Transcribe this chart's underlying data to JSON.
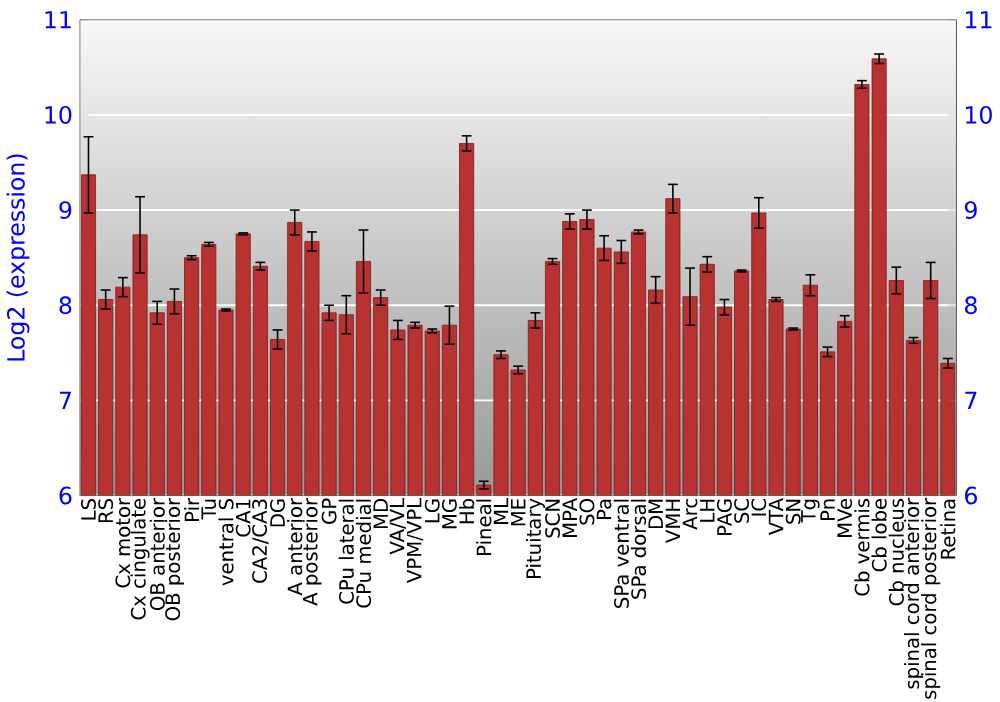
{
  "chart_data": {
    "type": "bar",
    "ylabel": "Log2 (expression)",
    "categories": [
      "LS",
      "RS",
      "Cx motor",
      "Cx cingulate",
      "OB anterior",
      "OB posterior",
      "Pir",
      "Tu",
      "ventral S",
      "CA1",
      "CA2/CA3",
      "DG",
      "A anterior",
      "A posterior",
      "GP",
      "CPu lateral",
      "CPu medial",
      "MD",
      "VA/VL",
      "VPM/VPL",
      "LG",
      "MG",
      "Hb",
      "Pineal",
      "ML",
      "ME",
      "Pituitary",
      "SCN",
      "MPA",
      "SO",
      "Pa",
      "SPa ventral",
      "SPa dorsal",
      "DM",
      "VMH",
      "Arc",
      "LH",
      "PAG",
      "SC",
      "IC",
      "VTA",
      "SN",
      "Tg",
      "Pn",
      "MVe",
      "Cb vermis",
      "Cb lobe",
      "Cb nucleus",
      "spinal cord anterior",
      "spinal cord posterior",
      "Retina"
    ],
    "values": [
      9.37,
      8.06,
      8.19,
      8.74,
      7.92,
      8.04,
      8.5,
      8.64,
      7.95,
      8.75,
      8.41,
      7.64,
      8.87,
      8.67,
      7.92,
      7.9,
      8.46,
      8.08,
      7.74,
      7.79,
      7.73,
      7.79,
      9.7,
      6.11,
      7.48,
      7.32,
      7.84,
      8.46,
      8.88,
      8.9,
      8.6,
      8.56,
      8.77,
      8.16,
      9.12,
      8.09,
      8.43,
      7.98,
      8.36,
      8.97,
      8.06,
      7.75,
      8.21,
      7.51,
      7.83,
      10.32,
      10.59,
      8.26,
      7.63,
      8.26,
      7.39
    ],
    "errors": [
      0.4,
      0.1,
      0.1,
      0.4,
      0.12,
      0.13,
      0.02,
      0.02,
      0.01,
      0.01,
      0.04,
      0.1,
      0.13,
      0.1,
      0.08,
      0.2,
      0.33,
      0.08,
      0.1,
      0.03,
      0.02,
      0.2,
      0.08,
      0.04,
      0.04,
      0.04,
      0.08,
      0.03,
      0.08,
      0.1,
      0.13,
      0.12,
      0.02,
      0.14,
      0.15,
      0.3,
      0.08,
      0.08,
      0.01,
      0.16,
      0.02,
      0.01,
      0.11,
      0.05,
      0.06,
      0.04,
      0.05,
      0.14,
      0.03,
      0.19,
      0.05
    ],
    "color": "#b83232",
    "ylim": [
      6,
      11
    ],
    "yticks": [
      6,
      7,
      8,
      9,
      10,
      11
    ],
    "y2lim": [
      6,
      11
    ],
    "y2ticks": [
      6,
      7,
      8,
      9,
      10,
      11
    ],
    "grid": "y"
  }
}
